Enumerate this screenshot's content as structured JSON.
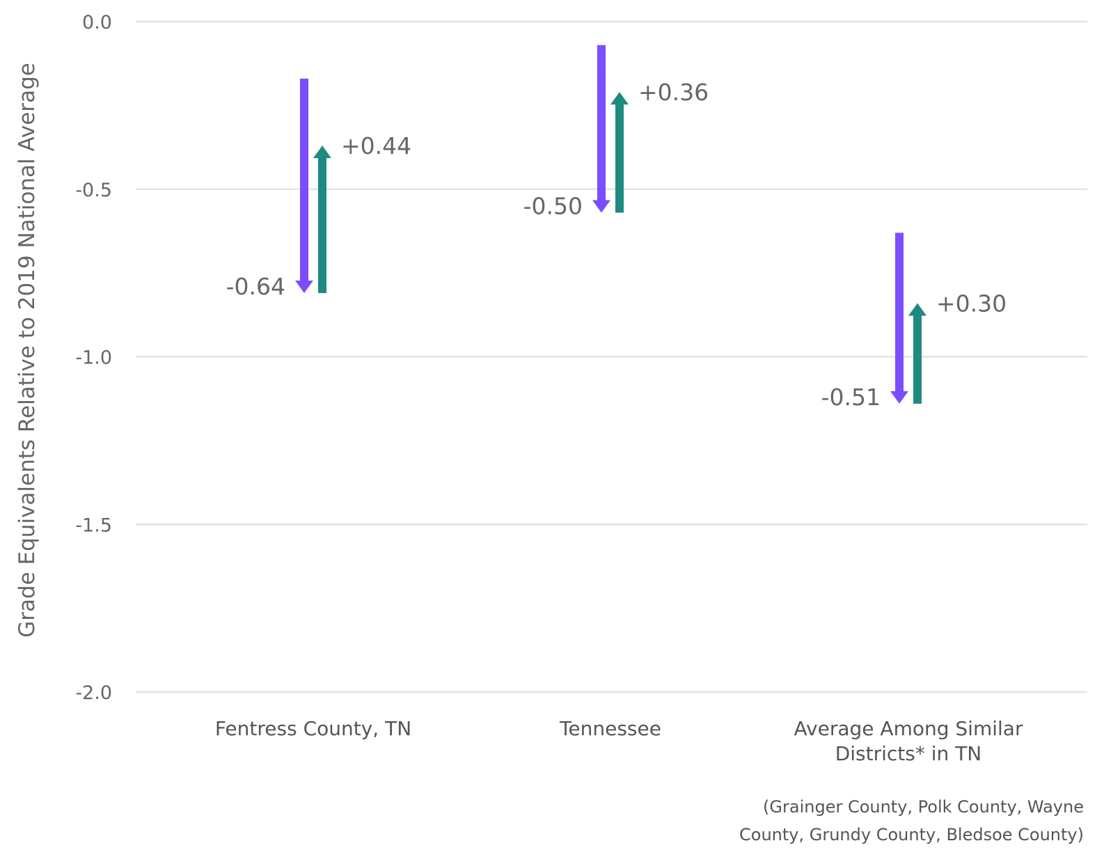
{
  "chart_data": {
    "type": "arrow",
    "title": "",
    "ylabel": "Grade Equivalents Relative to 2019 National Average",
    "ylim": [
      -2.0,
      0.0
    ],
    "yticks": [
      0.0,
      -0.5,
      -1.0,
      -1.5,
      -2.0
    ],
    "ytick_labels": [
      "0.0",
      "-0.5",
      "-1.0",
      "-1.5",
      "-2.0"
    ],
    "grid": true,
    "colors": {
      "decline": "#7c4dff",
      "recovery": "#1f8a80"
    },
    "categories": [
      {
        "label_lines": [
          "Fentress County, TN"
        ],
        "decline": {
          "start": -0.17,
          "end": -0.81,
          "label": "-0.64"
        },
        "recovery": {
          "start": -0.81,
          "end": -0.37,
          "label": "+0.44"
        }
      },
      {
        "label_lines": [
          "Tennessee"
        ],
        "decline": {
          "start": -0.07,
          "end": -0.57,
          "label": "-0.50"
        },
        "recovery": {
          "start": -0.57,
          "end": -0.21,
          "label": "+0.36"
        }
      },
      {
        "label_lines": [
          "Average Among Similar",
          "Districts* in TN"
        ],
        "decline": {
          "start": -0.63,
          "end": -1.14,
          "label": "-0.51"
        },
        "recovery": {
          "start": -1.14,
          "end": -0.84,
          "label": "+0.30"
        }
      }
    ],
    "footnote_lines": [
      "(Grainger County, Polk County, Wayne",
      "County, Grundy County, Bledsoe County)"
    ]
  }
}
